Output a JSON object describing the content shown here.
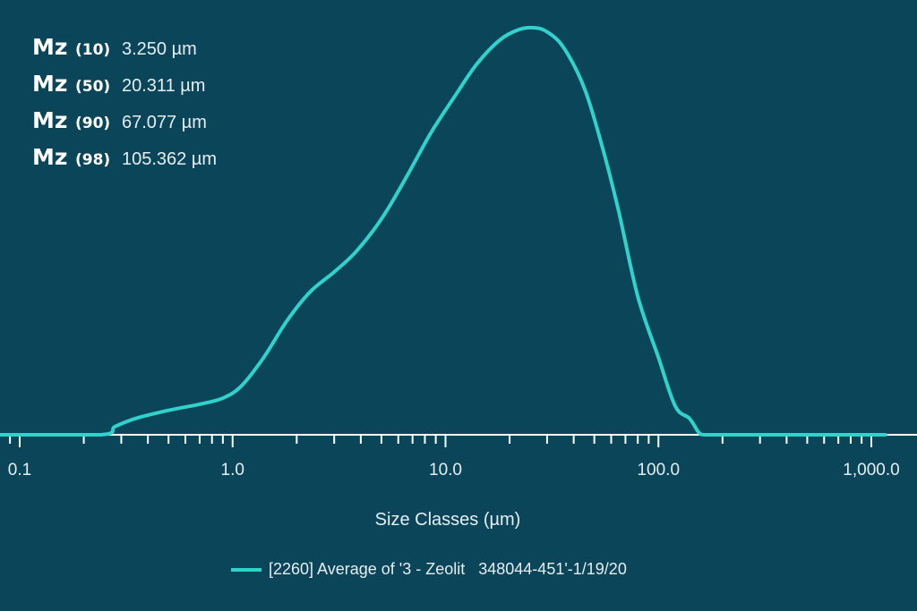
{
  "stats": [
    {
      "label": "Mz",
      "percentile": "(10)",
      "value": "3.250 µm"
    },
    {
      "label": "Mz",
      "percentile": "(50)",
      "value": "20.311 µm"
    },
    {
      "label": "Mz",
      "percentile": "(90)",
      "value": "67.077 µm"
    },
    {
      "label": "Mz",
      "percentile": "(98)",
      "value": "105.362 µm"
    }
  ],
  "chart_data": {
    "type": "line",
    "title": "",
    "xlabel": "Size Classes (µm)",
    "ylabel": "",
    "x_scale": "log",
    "xlim": [
      0.1,
      1000
    ],
    "ylim": [
      0,
      1.0
    ],
    "x_tick_labels": [
      "0.1",
      "1.0",
      "10.0",
      "100.0",
      "1,000.0"
    ],
    "grid": false,
    "legend": "bottom-center",
    "colors": {
      "background": "#0b455a",
      "series": "#2fd3cc",
      "axis": "#ffffff"
    },
    "series": [
      {
        "name": "[2260] Average of '3 - Zeolit   348044-451'-1/19/20",
        "x": [
          0.08,
          0.24,
          0.28,
          0.35,
          0.5,
          0.7,
          0.9,
          1.1,
          1.4,
          1.8,
          2.3,
          3.0,
          3.8,
          5.0,
          6.5,
          8.5,
          11,
          14,
          18,
          22,
          26,
          30,
          36,
          45,
          55,
          65,
          80,
          100,
          120,
          140,
          155,
          165,
          200,
          1000,
          1100
        ],
        "y": [
          0,
          0,
          0.02,
          0.04,
          0.06,
          0.075,
          0.09,
          0.12,
          0.19,
          0.28,
          0.35,
          0.4,
          0.45,
          0.53,
          0.63,
          0.74,
          0.83,
          0.91,
          0.97,
          0.995,
          1.0,
          0.99,
          0.95,
          0.85,
          0.7,
          0.55,
          0.34,
          0.19,
          0.07,
          0.04,
          0.005,
          0,
          0,
          0,
          0
        ]
      }
    ]
  }
}
